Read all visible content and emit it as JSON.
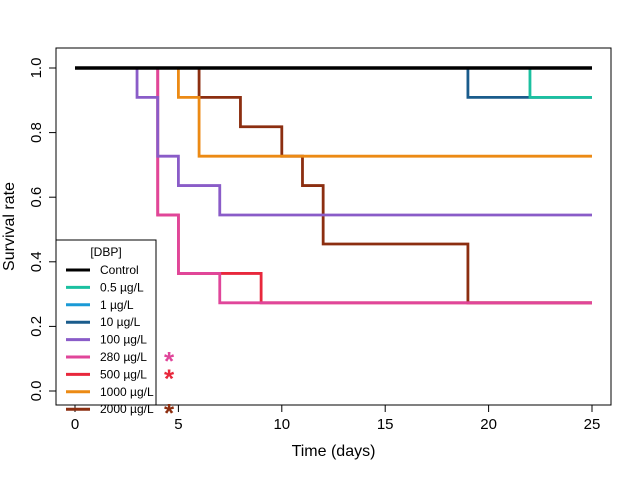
{
  "chart_data": {
    "type": "line",
    "step": true,
    "xlabel": "Time (days)",
    "ylabel": "Survival rate",
    "xlim": [
      0,
      25
    ],
    "ylim": [
      0,
      1
    ],
    "xticks": [
      0,
      5,
      10,
      15,
      20,
      25
    ],
    "yticks": [
      0.0,
      0.2,
      0.4,
      0.6,
      0.8,
      1.0
    ],
    "ytick_labels": [
      "0.0",
      "0.2",
      "0.4",
      "0.6",
      "0.8",
      "1.0"
    ],
    "grid": false,
    "legend": {
      "title": "[DBP]",
      "placement": "bottom-left"
    },
    "series": [
      {
        "name": "Control",
        "color": "#000000",
        "x": [
          0,
          25
        ],
        "y": [
          1.0,
          1.0
        ]
      },
      {
        "name": "0.5 µg/L",
        "color": "#1bc0a0",
        "x": [
          0,
          22,
          25
        ],
        "y": [
          1.0,
          0.909,
          0.909
        ]
      },
      {
        "name": "1 µg/L",
        "color": "#1a9ad6",
        "x": [
          0,
          25
        ],
        "y": [
          1.0,
          1.0
        ]
      },
      {
        "name": "10 µg/L",
        "color": "#1a5c8c",
        "x": [
          0,
          19,
          25
        ],
        "y": [
          1.0,
          0.909,
          0.909
        ]
      },
      {
        "name": "100 µg/L",
        "color": "#8a5cc8",
        "x": [
          0,
          3,
          4,
          5,
          7,
          25
        ],
        "y": [
          1.0,
          0.909,
          0.727,
          0.636,
          0.545,
          0.545
        ]
      },
      {
        "name": "280 µg/L",
        "color": "#e0469a",
        "x": [
          0,
          4,
          5,
          7,
          25
        ],
        "y": [
          1.0,
          0.545,
          0.364,
          0.273,
          0.273
        ]
      },
      {
        "name": "500 µg/L",
        "color": "#e8283c",
        "x": [
          0,
          4,
          5,
          9,
          25
        ],
        "y": [
          1.0,
          0.545,
          0.364,
          0.273,
          0.273
        ]
      },
      {
        "name": "1000 µg/L",
        "color": "#ec8a14",
        "x": [
          0,
          5,
          6,
          25
        ],
        "y": [
          1.0,
          0.909,
          0.727,
          0.727
        ]
      },
      {
        "name": "2000 µg/L",
        "color": "#8c2e10",
        "x": [
          0,
          6,
          8,
          10,
          11,
          12,
          19,
          25
        ],
        "y": [
          1.0,
          0.909,
          0.818,
          0.727,
          0.636,
          0.455,
          0.273,
          0.273
        ]
      }
    ],
    "annotations": [
      {
        "text": "*",
        "series": "280 µg/L",
        "color": "#e0469a"
      },
      {
        "text": "*",
        "series": "500 µg/L",
        "color": "#e8283c"
      },
      {
        "text": "*",
        "series": "2000 µg/L",
        "color": "#8c2e10"
      }
    ]
  }
}
